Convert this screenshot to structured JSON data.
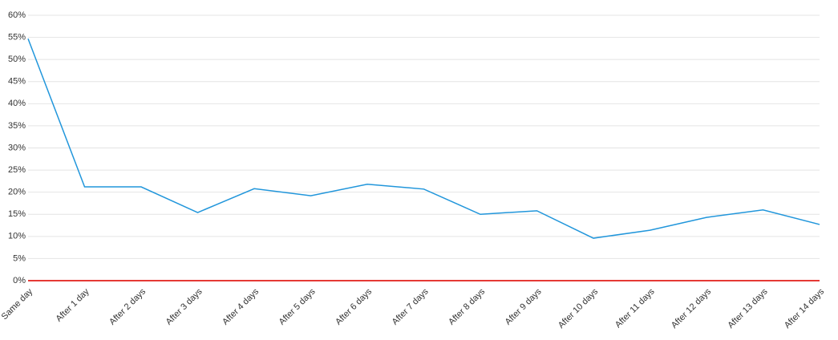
{
  "chart_data": {
    "type": "line",
    "categories": [
      "Same day",
      "After 1 day",
      "After 2 days",
      "After 3 days",
      "After 4 days",
      "After 5 days",
      "After 6 days",
      "After 7 days",
      "After 8 days",
      "After 9 days",
      "After 10 days",
      "After 11 days",
      "After 12 days",
      "After 13 days",
      "After 14 days"
    ],
    "series": [
      {
        "color": "#2196db",
        "values": [
          54.7,
          21.2,
          21.2,
          15.4,
          20.8,
          19.2,
          21.8,
          20.7,
          15.0,
          15.8,
          9.6,
          11.4,
          14.3,
          16.0,
          12.7
        ]
      }
    ],
    "ylim": [
      0,
      60
    ],
    "yticks": [
      {
        "value": 0,
        "label": "0%"
      },
      {
        "value": 5,
        "label": "5%"
      },
      {
        "value": 10,
        "label": "10%"
      },
      {
        "value": 15,
        "label": "15%"
      },
      {
        "value": 20,
        "label": "20%"
      },
      {
        "value": 25,
        "label": "25%"
      },
      {
        "value": 30,
        "label": "30%"
      },
      {
        "value": 35,
        "label": "35%"
      },
      {
        "value": 40,
        "label": "40%"
      },
      {
        "value": 45,
        "label": "45%"
      },
      {
        "value": 50,
        "label": "50%"
      },
      {
        "value": 55,
        "label": "55%"
      },
      {
        "value": 60,
        "label": "60%"
      }
    ],
    "grid": true,
    "grid_color": "#e4e4e4",
    "baseline_color": "#e53935"
  }
}
